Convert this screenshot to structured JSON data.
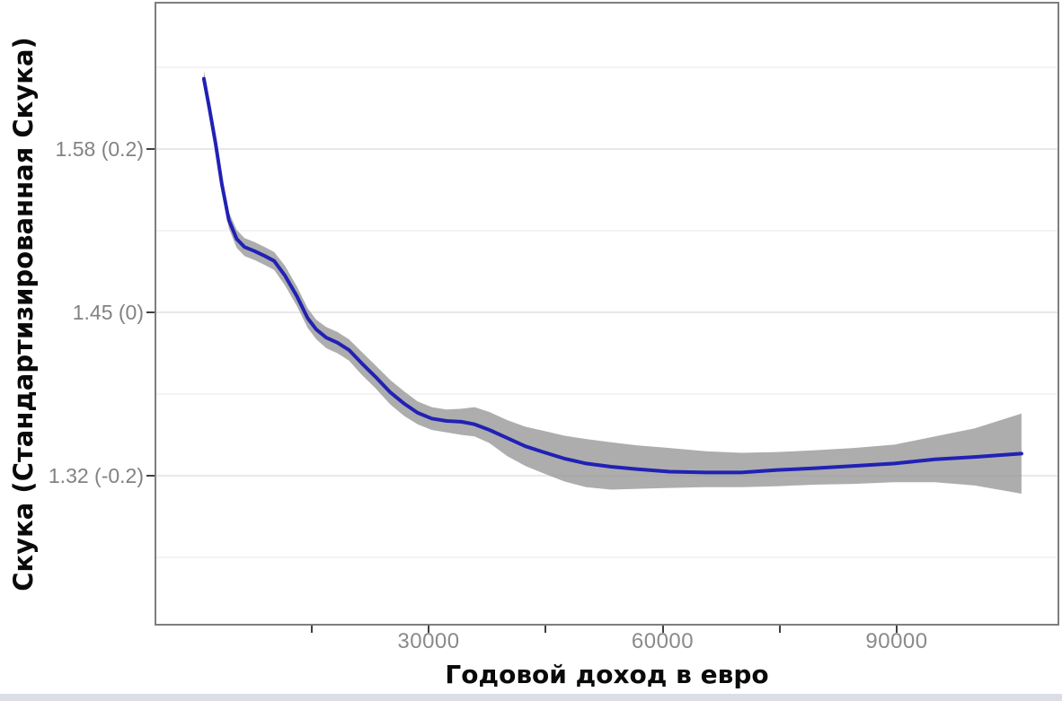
{
  "page": {
    "background": "#ffffff",
    "bottom_strip_color": "#dcdee7"
  },
  "chart_data": {
    "type": "line",
    "title": "",
    "xlabel": "Годовой доход в евро",
    "ylabel": "Скука (Стандартизированная Скука)",
    "legend": "none",
    "grid": "horizontal-only",
    "xlim": [
      -4000,
      111000
    ],
    "ylim_std": [
      -0.384,
      0.38
    ],
    "x_ticks": [
      {
        "value": 15000,
        "label": ""
      },
      {
        "value": 30000,
        "label": "30000"
      },
      {
        "value": 45000,
        "label": ""
      },
      {
        "value": 60000,
        "label": "60000"
      },
      {
        "value": 75000,
        "label": ""
      },
      {
        "value": 90000,
        "label": "90000"
      }
    ],
    "y_ticks": [
      {
        "raw": 1.58,
        "std": 0.2,
        "label": "1.58 (0.2)"
      },
      {
        "raw": 1.45,
        "std": 0.0,
        "label": "1.45 (0)"
      },
      {
        "raw": 1.32,
        "std": -0.2,
        "label": "1.32 (-0.2)"
      }
    ],
    "y_minor_grid_std": [
      0.3,
      0.1,
      -0.1,
      -0.3
    ],
    "series": [
      {
        "name": "gam-smooth-with-confidence-band",
        "x": [
          1200,
          1900,
          2700,
          3500,
          4400,
          5400,
          6400,
          7700,
          9000,
          10200,
          11600,
          13100,
          14500,
          15600,
          16900,
          18300,
          19800,
          21400,
          23200,
          25100,
          26900,
          28600,
          30400,
          32300,
          34200,
          35900,
          37800,
          40100,
          42400,
          44700,
          47400,
          50200,
          53400,
          56800,
          60900,
          65500,
          70100,
          74700,
          79300,
          84500,
          89700,
          94900,
          100000,
          106000
        ],
        "y_std": [
          0.286,
          0.25,
          0.207,
          0.157,
          0.113,
          0.09,
          0.08,
          0.075,
          0.069,
          0.063,
          0.045,
          0.02,
          -0.007,
          -0.021,
          -0.031,
          -0.037,
          -0.046,
          -0.062,
          -0.079,
          -0.098,
          -0.112,
          -0.123,
          -0.13,
          -0.133,
          -0.134,
          -0.137,
          -0.144,
          -0.154,
          -0.164,
          -0.171,
          -0.179,
          -0.185,
          -0.189,
          -0.192,
          -0.195,
          -0.196,
          -0.196,
          -0.193,
          -0.191,
          -0.188,
          -0.185,
          -0.18,
          -0.177,
          -0.173
        ],
        "ci_upper_std": [
          0.296,
          0.258,
          0.215,
          0.166,
          0.123,
          0.101,
          0.091,
          0.086,
          0.08,
          0.074,
          0.057,
          0.032,
          0.005,
          -0.009,
          -0.018,
          -0.024,
          -0.033,
          -0.048,
          -0.065,
          -0.083,
          -0.097,
          -0.109,
          -0.116,
          -0.119,
          -0.118,
          -0.116,
          -0.122,
          -0.132,
          -0.14,
          -0.145,
          -0.151,
          -0.155,
          -0.159,
          -0.163,
          -0.166,
          -0.17,
          -0.172,
          -0.171,
          -0.169,
          -0.166,
          -0.162,
          -0.152,
          -0.142,
          -0.124
        ],
        "ci_lower_std": [
          0.276,
          0.242,
          0.199,
          0.148,
          0.103,
          0.079,
          0.069,
          0.064,
          0.058,
          0.052,
          0.033,
          0.008,
          -0.019,
          -0.033,
          -0.044,
          -0.05,
          -0.059,
          -0.076,
          -0.093,
          -0.113,
          -0.127,
          -0.137,
          -0.144,
          -0.147,
          -0.15,
          -0.152,
          -0.16,
          -0.176,
          -0.188,
          -0.197,
          -0.207,
          -0.214,
          -0.217,
          -0.216,
          -0.215,
          -0.214,
          -0.214,
          -0.213,
          -0.211,
          -0.21,
          -0.208,
          -0.208,
          -0.212,
          -0.222
        ]
      }
    ],
    "colors": {
      "line": "#2121b5",
      "band": "#999999",
      "band_opacity": 0.8,
      "grid_major": "#e8e8eb",
      "grid_minor": "#f3f3f5",
      "panel_border": "#7e7e7e",
      "tick_mark": "#3f3f3f",
      "tick_label": "#868686",
      "axis_title": "#0a0a0a"
    }
  }
}
